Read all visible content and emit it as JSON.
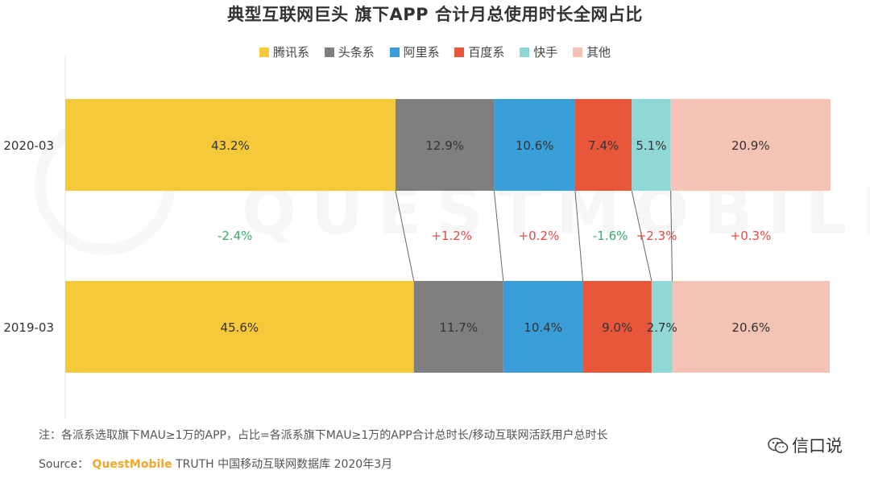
{
  "chart_data": {
    "type": "bar",
    "orientation": "horizontal",
    "stacked": true,
    "title": "典型互联网巨头 旗下APP 合计月总使用时长全网占比",
    "categories": [
      "2020-03",
      "2019-03"
    ],
    "series": [
      {
        "name": "腾讯系",
        "color": "#f6c93b",
        "values": [
          43.2,
          45.6
        ],
        "labels": [
          "43.2%",
          "45.6%"
        ],
        "change": "-2.4%",
        "change_color": "#3aaa6b"
      },
      {
        "name": "头条系",
        "color": "#7f7f7f",
        "values": [
          12.9,
          11.7
        ],
        "labels": [
          "12.9%",
          "11.7%"
        ],
        "change": "+1.2%",
        "change_color": "#e24a44"
      },
      {
        "name": "阿里系",
        "color": "#3a9fd9",
        "values": [
          10.6,
          10.4
        ],
        "labels": [
          "10.6%",
          "10.4%"
        ],
        "change": "+0.2%",
        "change_color": "#e24a44"
      },
      {
        "name": "百度系",
        "color": "#e8573a",
        "values": [
          7.4,
          9.0
        ],
        "labels": [
          "7.4%",
          "9.0%"
        ],
        "change": "-1.6%",
        "change_color": "#3aaa6b"
      },
      {
        "name": "快手",
        "color": "#8fd8d6",
        "values": [
          5.1,
          2.7
        ],
        "labels": [
          "5.1%",
          "2.7%"
        ],
        "change": "+2.3%",
        "change_color": "#e24a44"
      },
      {
        "name": "其他",
        "color": "#f5c3b6",
        "values": [
          20.9,
          20.6
        ],
        "labels": [
          "20.9%",
          "20.6%"
        ],
        "change": "+0.3%",
        "change_color": "#e24a44"
      }
    ],
    "xlim": [
      0,
      100
    ],
    "grid": false,
    "legend_position": "top"
  },
  "footnote": "注：各派系选取旗下MAU≥1万的APP，占比=各派系旗下MAU≥1万的APP合计总时长/移动互联网活跃用户总时长",
  "source": {
    "label": "Source：",
    "brand": "QuestMobile",
    "text": "TRUTH 中国移动互联网数据库 2020年3月"
  },
  "wechat_account": "信口说",
  "watermark": "QUESTMOBILE"
}
